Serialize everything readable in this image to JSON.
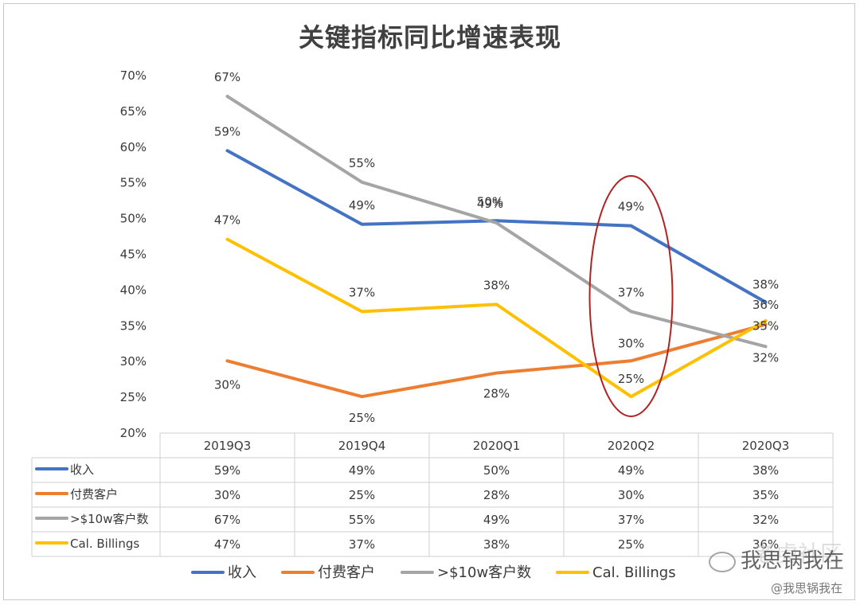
{
  "chart_data": {
    "type": "line",
    "title": "关键指标同比增速表现",
    "categories": [
      "2019Q3",
      "2019Q4",
      "2020Q1",
      "2020Q2",
      "2020Q3"
    ],
    "ylim": [
      0.2,
      0.7
    ],
    "yticks": [
      "20%",
      "25%",
      "30%",
      "35%",
      "40%",
      "45%",
      "50%",
      "55%",
      "60%",
      "65%",
      "70%"
    ],
    "legend_position": "bottom",
    "grid": false,
    "series": [
      {
        "name": "收入",
        "color": "#4472C4",
        "values": [
          0.595,
          0.492,
          0.497,
          0.49,
          0.383
        ],
        "labels": [
          "59%",
          "49%",
          "50%",
          "49%",
          "38%"
        ]
      },
      {
        "name": "付费客户",
        "color": "#ED7D31",
        "values": [
          0.301,
          0.251,
          0.284,
          0.301,
          0.352
        ],
        "labels": [
          "30%",
          "25%",
          "28%",
          "30%",
          "35%"
        ]
      },
      {
        "name": ">$10w客户数",
        "color": "#A5A5A5",
        "values": [
          0.671,
          0.551,
          0.494,
          0.37,
          0.321
        ],
        "labels": [
          "67%",
          "55%",
          "49%",
          "37%",
          "32%"
        ]
      },
      {
        "name": "Cal. Billings",
        "color": "#FFC000",
        "values": [
          0.471,
          0.37,
          0.38,
          0.251,
          0.357
        ],
        "labels": [
          "47%",
          "37%",
          "38%",
          "25%",
          "36%"
        ]
      }
    ],
    "annotation": {
      "type": "ellipse",
      "color": "#B22222",
      "around_category": "2020Q2"
    }
  },
  "watermark": {
    "main": "我思锅我在",
    "sub": "@我思锅我在",
    "ghost": "老虎社区"
  }
}
